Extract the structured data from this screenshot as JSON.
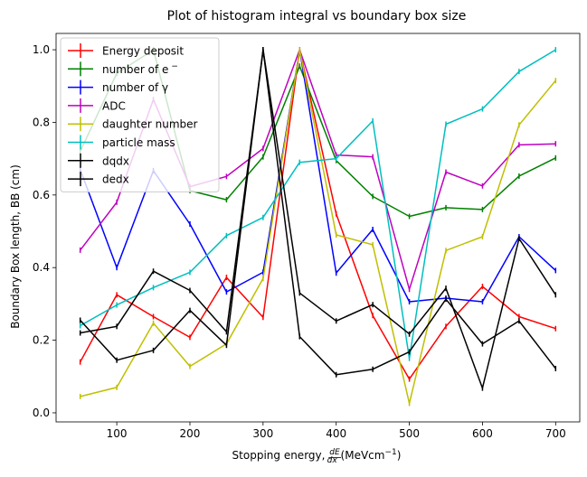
{
  "chart_data": {
    "type": "line",
    "title": "Plot of histogram integral vs boundary box size",
    "xlabel_prefix": "Stopping energy, ",
    "xlabel_frac_num": "dE",
    "xlabel_frac_den": "dx",
    "xlabel_unit": " (MeVcm",
    "xlabel_unit_sup": "−1",
    "xlabel_unit_close": ")",
    "ylabel": "Boundary Box length, BB (cm)",
    "xlim": [
      17,
      733
    ],
    "ylim": [
      -0.025,
      1.045
    ],
    "xticks": [
      100,
      200,
      300,
      400,
      500,
      600,
      700
    ],
    "yticks": [
      0.0,
      0.2,
      0.4,
      0.6,
      0.8,
      1.0
    ],
    "yticklabels": [
      "0.0",
      "0.2",
      "0.4",
      "0.6",
      "0.8",
      "1.0"
    ],
    "grid": false,
    "legend_position": "top-left",
    "x": [
      50,
      100,
      150,
      200,
      250,
      300,
      350,
      400,
      450,
      500,
      550,
      600,
      650,
      700
    ],
    "series": [
      {
        "name": "Energy deposit",
        "color": "#ff0000",
        "values": [
          0.14,
          0.325,
          0.265,
          0.208,
          0.373,
          0.263,
          1.0,
          0.548,
          0.268,
          0.093,
          0.238,
          0.348,
          0.265,
          0.232
        ]
      },
      {
        "name": "number of e",
        "name_sup": "−",
        "color": "#008000",
        "values": [
          0.72,
          0.935,
          1.0,
          0.612,
          0.587,
          0.705,
          0.955,
          0.695,
          0.596,
          0.541,
          0.565,
          0.56,
          0.652,
          0.702
        ]
      },
      {
        "name": "number of γ",
        "color": "#0000ff",
        "values": [
          0.67,
          0.4,
          0.667,
          0.52,
          0.333,
          0.387,
          1.0,
          0.385,
          0.505,
          0.306,
          0.316,
          0.306,
          0.485,
          0.392
        ]
      },
      {
        "name": "ADC",
        "color": "#bf00bf",
        "values": [
          0.448,
          0.58,
          0.863,
          0.623,
          0.651,
          0.728,
          1.0,
          0.71,
          0.705,
          0.34,
          0.663,
          0.625,
          0.738,
          0.741
        ]
      },
      {
        "name": "daughter number",
        "color": "#bfbf00",
        "values": [
          0.045,
          0.07,
          0.247,
          0.128,
          0.19,
          0.37,
          1.0,
          0.49,
          0.463,
          0.026,
          0.447,
          0.485,
          0.793,
          0.915
        ]
      },
      {
        "name": "particle mass",
        "color": "#00bfbf",
        "values": [
          0.24,
          0.297,
          0.345,
          0.387,
          0.488,
          0.538,
          0.69,
          0.7,
          0.804,
          0.15,
          0.795,
          0.837,
          0.94,
          1.0
        ]
      },
      {
        "name": "dqdx",
        "color": "#000000",
        "values": [
          0.22,
          0.238,
          0.39,
          0.337,
          0.223,
          1.0,
          0.33,
          0.253,
          0.298,
          0.217,
          0.343,
          0.068,
          0.48,
          0.325
        ]
      },
      {
        "name": "dedx",
        "color": "#000000",
        "values": [
          0.255,
          0.145,
          0.172,
          0.282,
          0.186,
          1.0,
          0.21,
          0.105,
          0.12,
          0.168,
          0.313,
          0.19,
          0.253,
          0.122
        ]
      }
    ]
  }
}
